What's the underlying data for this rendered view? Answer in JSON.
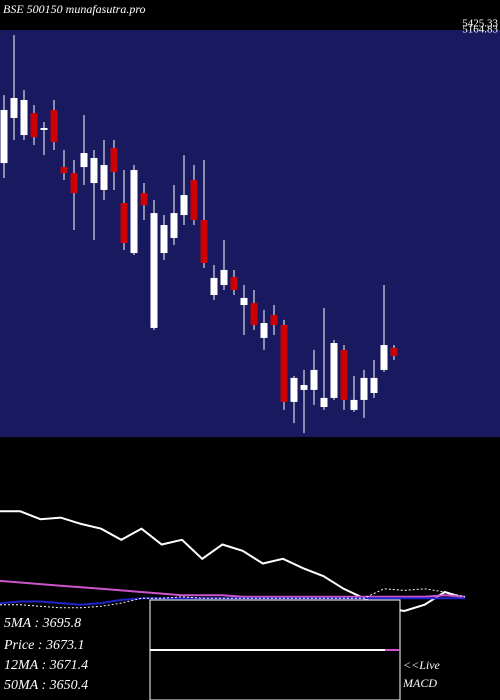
{
  "chart_data": {
    "type": "candlestick",
    "title": "BSE 500150 munafasutra.pro",
    "price_labels": [
      "5425.33",
      "5164.83"
    ],
    "background": "#191960",
    "up_color": "#ffffff",
    "down_color": "#cc0000",
    "ylim": [
      3186,
      5425
    ],
    "open": [
      4693,
      4941,
      4847,
      4968,
      4875,
      4985,
      4671,
      4638,
      4671,
      4583,
      4545,
      4776,
      4473,
      4198,
      4528,
      3786,
      4198,
      4281,
      4407,
      4600,
      4380,
      3967,
      4022,
      4066,
      3912,
      3923,
      3731,
      3857,
      3802,
      3379,
      3445,
      3445,
      3351,
      3401,
      3665,
      3335,
      3390,
      3428,
      3555,
      3676
    ],
    "high": [
      5067,
      5397,
      5095,
      5012,
      4919,
      5040,
      4765,
      4710,
      4957,
      4765,
      4820,
      4820,
      4655,
      4682,
      4583,
      4490,
      4407,
      4572,
      4737,
      4682,
      4710,
      4132,
      4270,
      4105,
      4022,
      3995,
      3885,
      3912,
      3830,
      3522,
      3555,
      3665,
      3896,
      3720,
      3692,
      3522,
      3555,
      3610,
      4022,
      3692
    ],
    "low": [
      4611,
      4820,
      4820,
      4792,
      4737,
      4765,
      4600,
      4325,
      4572,
      4270,
      4490,
      4545,
      4215,
      4187,
      4380,
      3775,
      4160,
      4242,
      4352,
      4352,
      4116,
      3940,
      3995,
      3967,
      3747,
      3775,
      3665,
      3747,
      3335,
      3262,
      3207,
      3362,
      3335,
      3390,
      3335,
      3324,
      3291,
      3401,
      3544,
      3610
    ],
    "close": [
      4985,
      5051,
      5040,
      4836,
      4886,
      4809,
      4638,
      4528,
      4748,
      4721,
      4682,
      4644,
      4253,
      4655,
      4462,
      4418,
      4352,
      4418,
      4517,
      4380,
      4143,
      4061,
      4105,
      3995,
      3951,
      3802,
      3813,
      3802,
      3379,
      3511,
      3472,
      3555,
      3401,
      3703,
      3390,
      3390,
      3511,
      3511,
      3692,
      3632
    ],
    "indicators": {
      "ylim": [
        -20,
        100
      ],
      "series": [
        {
          "color": "#ffffff",
          "dashed": false,
          "values": [
            55,
            55,
            50,
            51,
            47,
            44,
            37,
            44,
            34,
            37,
            25,
            34,
            30,
            22,
            25,
            19,
            14,
            6,
            0,
            -6,
            -8,
            -4,
            4,
            0
          ]
        },
        {
          "color": "#cc55cc",
          "dashed": false,
          "values": [
            11,
            10,
            9,
            8,
            7,
            6,
            5,
            4,
            3,
            2,
            2,
            2,
            1,
            1,
            1,
            1,
            1,
            1,
            1,
            1,
            1,
            1,
            2,
            1
          ]
        },
        {
          "color": "#2222cc",
          "dashed": false,
          "values": [
            -3,
            -2,
            -2,
            -3,
            -4,
            -3,
            -1,
            0,
            0,
            0,
            0,
            0,
            0,
            0,
            0,
            0,
            0,
            0,
            0,
            0,
            0,
            0,
            0,
            0
          ]
        },
        {
          "color": "#ffffff",
          "dashed": true,
          "values": [
            -4,
            -4,
            -5,
            -6,
            -6,
            -5,
            -3,
            0,
            0,
            1,
            0,
            0,
            0,
            0,
            0,
            0,
            0,
            0,
            0,
            6,
            5,
            6,
            4,
            1
          ]
        }
      ]
    },
    "legend": [
      "5MA : 3695.8",
      "Price  : 3673.1",
      "12MA  : 3671.4",
      "50MA : 3650.4"
    ],
    "live_label": "<<Live",
    "macd_label": "MACD"
  }
}
